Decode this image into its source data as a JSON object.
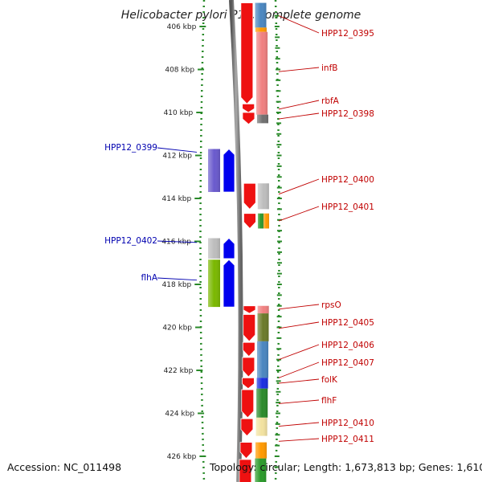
{
  "title": "Helicobacter pylori P12, complete genome",
  "footer": {
    "accession": "Accession: NC_011498",
    "topology": "Topology: circular; Length: 1,673,813 bp; Genes: 1,610"
  },
  "axis": {
    "unit": "kbp",
    "ticks": [
      {
        "kbp": 406,
        "label": "406 kbp"
      },
      {
        "kbp": 408,
        "label": "408 kbp"
      },
      {
        "kbp": 410,
        "label": "410 kbp"
      },
      {
        "kbp": 412,
        "label": "412 kbp"
      },
      {
        "kbp": 414,
        "label": "414 kbp"
      },
      {
        "kbp": 416,
        "label": "416 kbp"
      },
      {
        "kbp": 418,
        "label": "418 kbp"
      },
      {
        "kbp": 420,
        "label": "420 kbp"
      },
      {
        "kbp": 422,
        "label": "422 kbp"
      },
      {
        "kbp": 424,
        "label": "424 kbp"
      },
      {
        "kbp": 426,
        "label": "426 kbp"
      }
    ]
  },
  "genes_forward": [
    {
      "start": 404.9,
      "end": 406.05,
      "color": "#4a86c0"
    },
    {
      "start": 406.05,
      "end": 406.25,
      "color": "#ff9900"
    },
    {
      "start": 406.25,
      "end": 410.1,
      "color": "#f08080"
    },
    {
      "start": 410.1,
      "end": 410.5,
      "color": "#707070"
    },
    {
      "start": 413.3,
      "end": 414.5,
      "color": "#bdbdbd"
    },
    {
      "start": 414.7,
      "end": 415.4,
      "color": "#2e9a2e"
    },
    {
      "start": 414.7,
      "end": 415.4,
      "color": "#ff9900"
    },
    {
      "start": 419.0,
      "end": 419.35,
      "color": "#f08080"
    },
    {
      "start": 419.35,
      "end": 420.65,
      "color": "#6b7a2a"
    },
    {
      "start": 420.65,
      "end": 422.35,
      "color": "#4a86c0"
    },
    {
      "start": 422.35,
      "end": 422.85,
      "color": "#1a2ee0"
    },
    {
      "start": 422.85,
      "end": 424.2,
      "color": "#2a8a2a"
    },
    {
      "start": 424.2,
      "end": 425.05,
      "color": "#f2e2a0"
    },
    {
      "start": 425.35,
      "end": 426.1,
      "color": "#ff9900"
    },
    {
      "start": 426.1,
      "end": 427.2,
      "color": "#2a9a2a"
    }
  ],
  "genes_reverse": [
    {
      "start": 411.7,
      "end": 413.7,
      "color": "#6a5acd"
    },
    {
      "start": 415.85,
      "end": 416.8,
      "color": "#bdbdbd"
    },
    {
      "start": 416.85,
      "end": 419.05,
      "color": "#7ab800"
    }
  ],
  "labels_forward": [
    {
      "text": "HPP12_0395",
      "kbp": 405.5
    },
    {
      "text": "infB",
      "kbp": 408.1
    },
    {
      "text": "rbfA",
      "kbp": 409.85
    },
    {
      "text": "HPP12_0398",
      "kbp": 410.3
    },
    {
      "text": "HPP12_0400",
      "kbp": 413.8
    },
    {
      "text": "HPP12_0401",
      "kbp": 415.05
    },
    {
      "text": "rpsO",
      "kbp": 419.15
    },
    {
      "text": "HPP12_0405",
      "kbp": 420.05
    },
    {
      "text": "HPP12_0406",
      "kbp": 421.5
    },
    {
      "text": "HPP12_0407",
      "kbp": 422.35
    },
    {
      "text": "folK",
      "kbp": 422.6
    },
    {
      "text": "flhF",
      "kbp": 423.55
    },
    {
      "text": "HPP12_0410",
      "kbp": 424.6
    },
    {
      "text": "HPP12_0411",
      "kbp": 425.3
    }
  ],
  "labels_reverse": [
    {
      "text": "HPP12_0399",
      "kbp": 411.85
    },
    {
      "text": "HPP12_0402",
      "kbp": 416.05
    },
    {
      "text": "flhA",
      "kbp": 417.8
    }
  ]
}
